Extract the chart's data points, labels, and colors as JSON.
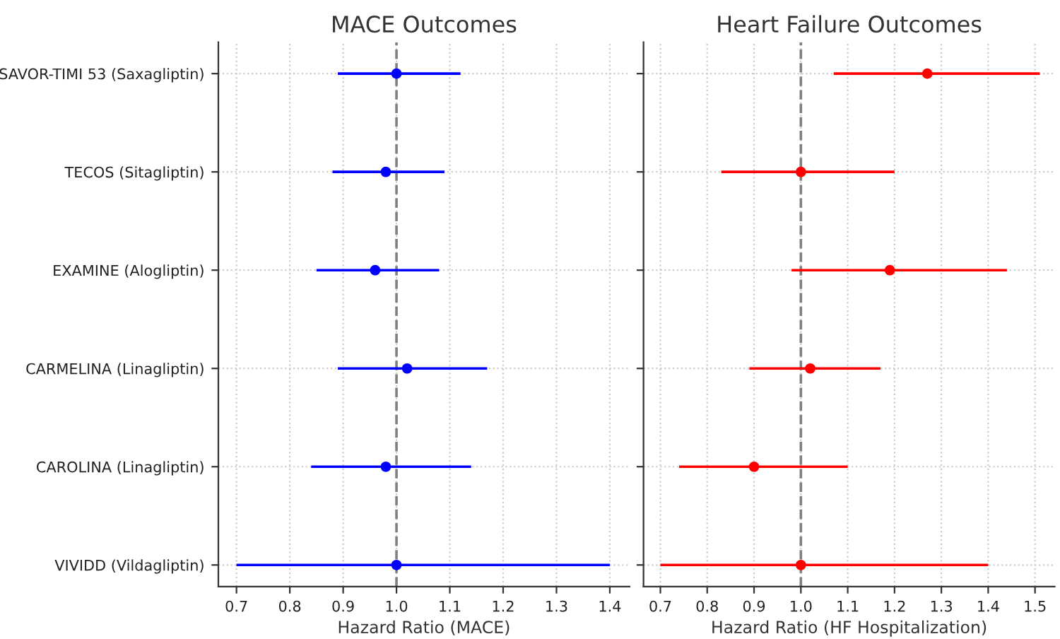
{
  "chart_data": [
    {
      "type": "scatter",
      "orientation": "horizontal",
      "title": "MACE Outcomes",
      "xlabel": "Hazard Ratio (MACE)",
      "categories": [
        "SAVOR-TIMI 53 (Saxagliptin)",
        "TECOS (Sitagliptin)",
        "EXAMINE (Alogliptin)",
        "CARMELINA (Linagliptin)",
        "CAROLINA (Linagliptin)",
        "VIVIDD (Vildagliptin)"
      ],
      "series": [
        {
          "color": "#0000ff",
          "values": [
            1.0,
            0.98,
            0.96,
            1.02,
            0.98,
            1.0
          ],
          "errors": [
            [
              0.89,
              1.12
            ],
            [
              0.88,
              1.09
            ],
            [
              0.85,
              1.08
            ],
            [
              0.89,
              1.17
            ],
            [
              0.84,
              1.14
            ],
            [
              0.7,
              1.4
            ]
          ]
        }
      ],
      "xlim": [
        0.666,
        1.437
      ],
      "xticks": [
        0.7,
        0.8,
        0.9,
        {
          "value": 1.0,
          "label": "1.0"
        },
        1.1,
        1.2,
        1.3,
        1.4
      ],
      "ref_lines": [
        {
          "axis": "x",
          "value": 1.0,
          "color": "#808080",
          "line_style": "dashed"
        }
      ],
      "grid": true,
      "marker": "circle"
    },
    {
      "type": "scatter",
      "orientation": "horizontal",
      "title": "Heart Failure Outcomes",
      "xlabel": "Hazard Ratio (HF Hospitalization)",
      "categories": [
        null,
        null,
        null,
        null,
        null,
        null
      ],
      "series": [
        {
          "color": "#ff0000",
          "values": [
            1.27,
            1.0,
            1.19,
            1.02,
            0.9,
            1.0
          ],
          "errors": [
            [
              1.07,
              1.51
            ],
            [
              0.83,
              1.2
            ],
            [
              0.98,
              1.44
            ],
            [
              0.89,
              1.17
            ],
            [
              0.74,
              1.1
            ],
            [
              0.7,
              1.4
            ]
          ]
        }
      ],
      "xlim": [
        0.664,
        1.542
      ],
      "xticks": [
        0.7,
        0.8,
        0.9,
        {
          "value": 1.0,
          "label": "1.0"
        },
        1.1,
        1.2,
        1.3,
        1.4,
        1.5
      ],
      "ref_lines": [
        {
          "axis": "x",
          "value": 1.0,
          "color": "#808080",
          "line_style": "dashed"
        }
      ],
      "grid": true,
      "marker": "circle",
      "tick_labels": "x"
    }
  ]
}
